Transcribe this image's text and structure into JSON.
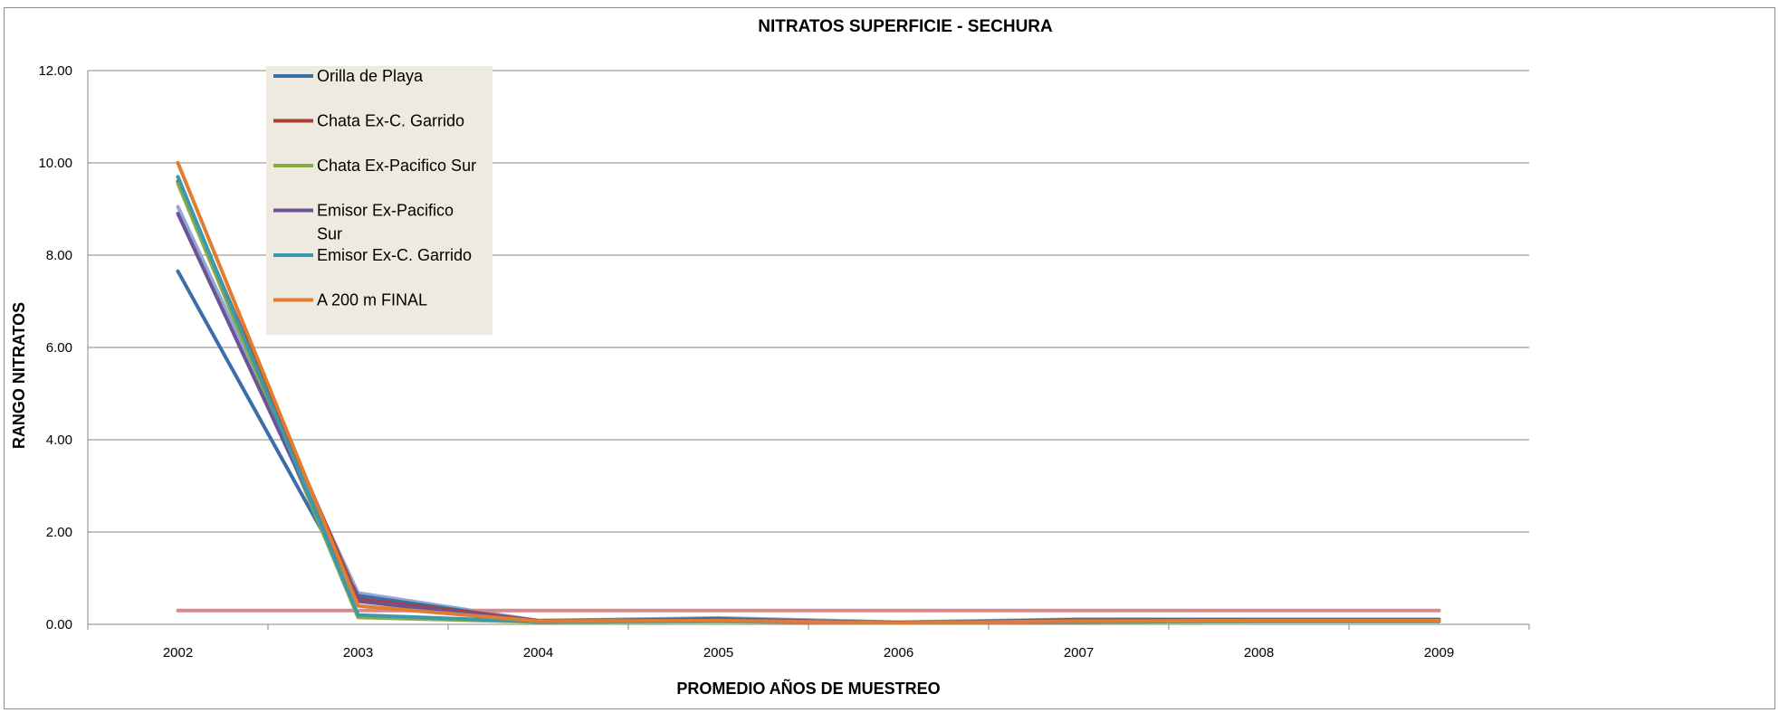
{
  "chart_data": {
    "type": "line",
    "title": "NITRATOS SUPERFICIE - SECHURA",
    "xlabel": "PROMEDIO AÑOS DE MUESTREO",
    "ylabel": "RANGO NITRATOS",
    "categories": [
      "2002",
      "2003",
      "2004",
      "2005",
      "2006",
      "2007",
      "2008",
      "2009"
    ],
    "ylim": [
      0,
      12
    ],
    "yticks": [
      "0.00",
      "2.00",
      "4.00",
      "6.00",
      "8.00",
      "10.00",
      "12.00"
    ],
    "grid": true,
    "legend_position": "top-left",
    "series": [
      {
        "name": "Orilla de Playa",
        "color": "#3b6ea8",
        "legend": true,
        "legend_lines": [
          "Orilla de Playa"
        ],
        "values": [
          7.65,
          0.62,
          0.06,
          0.12,
          0.03,
          0.1,
          0.1,
          0.1
        ]
      },
      {
        "name": "Chata Ex-C. Garrido",
        "color": "#a9403c",
        "legend": true,
        "legend_lines": [
          "Chata Ex-C. Garrido"
        ],
        "values": [
          9.6,
          0.55,
          0.08,
          0.1,
          0.04,
          0.08,
          0.08,
          0.08
        ]
      },
      {
        "name": "Chata Ex-Pacifico Sur",
        "color": "#8aaa45",
        "legend": true,
        "legend_lines": [
          "Chata Ex-Pacifico Sur"
        ],
        "values": [
          9.55,
          0.15,
          0.05,
          0.06,
          0.03,
          0.05,
          0.06,
          0.06
        ]
      },
      {
        "name": "Emisor Ex-Pacifico Sur",
        "color": "#6e5296",
        "legend": true,
        "legend_lines": [
          "Emisor Ex-Pacifico",
          "Sur"
        ],
        "values": [
          8.9,
          0.5,
          0.07,
          0.09,
          0.03,
          0.07,
          0.07,
          0.07
        ]
      },
      {
        "name": "Emisor Ex-C. Garrido",
        "color": "#3a9aad",
        "legend": true,
        "legend_lines": [
          "Emisor Ex-C. Garrido"
        ],
        "values": [
          9.7,
          0.2,
          0.06,
          0.07,
          0.03,
          0.06,
          0.07,
          0.07
        ]
      },
      {
        "name": "A 200 m FINAL",
        "color": "#e07d30",
        "legend": true,
        "legend_lines": [
          "A 200 m FINAL"
        ],
        "values": [
          10.0,
          0.4,
          0.07,
          0.08,
          0.03,
          0.07,
          0.08,
          0.08
        ]
      },
      {
        "name": "",
        "color": "#8fa8d4",
        "legend": false,
        "legend_lines": [],
        "values": [
          9.05,
          0.68,
          0.08,
          0.14,
          0.05,
          0.11,
          0.11,
          0.11
        ]
      },
      {
        "name": "",
        "color": "#d9888a",
        "legend": false,
        "legend_lines": [],
        "values": [
          0.3,
          0.3,
          0.3,
          0.3,
          0.3,
          0.3,
          0.3,
          0.3
        ]
      }
    ]
  }
}
